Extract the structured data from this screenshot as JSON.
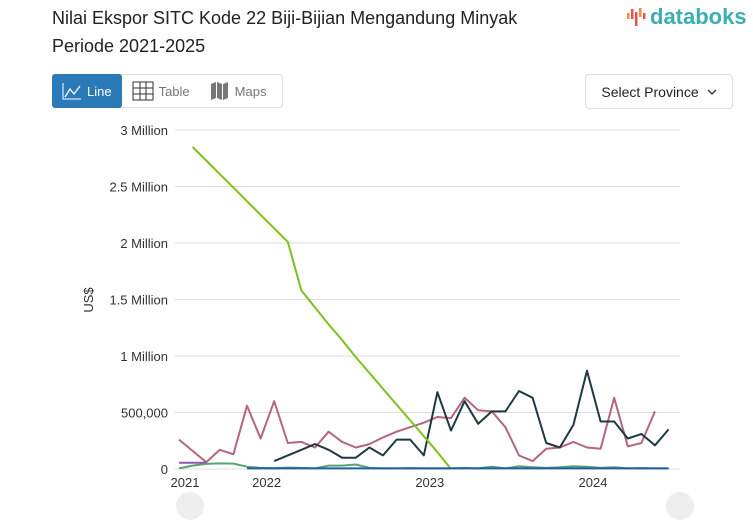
{
  "header": {
    "title_line1": "Nilai Ekspor SITC Kode 22 Biji-Bijian Mengandung Minyak",
    "title_line2": "Periode 2021-2025",
    "logo_text": "databoks"
  },
  "tabs": [
    {
      "label": "Line",
      "icon": "line-chart-icon",
      "active": true
    },
    {
      "label": "Table",
      "icon": "table-icon"
    },
    {
      "label": "Maps",
      "icon": "map-icon"
    }
  ],
  "select": {
    "label": "Select Province",
    "icon": "chevron-down-icon"
  },
  "colors": {
    "accent": "#2a7ab8",
    "logo": "#3aaeb0"
  },
  "chart_data": {
    "type": "line",
    "ylabel": "US$",
    "ylim": [
      0,
      3000000
    ],
    "yticks": [
      {
        "v": 0,
        "label": "0"
      },
      {
        "v": 500000,
        "label": "500,000"
      },
      {
        "v": 1000000,
        "label": "1 Million"
      },
      {
        "v": 1500000,
        "label": "1.5 Million"
      },
      {
        "v": 2000000,
        "label": "2 Million"
      },
      {
        "v": 2500000,
        "label": "2.5 Million"
      },
      {
        "v": 3000000,
        "label": "3 Million"
      }
    ],
    "xticks": [
      {
        "month": "2021-07",
        "label": "2021"
      },
      {
        "month": "2022-01",
        "label": "2022"
      },
      {
        "month": "2023-01",
        "label": "2023"
      },
      {
        "month": "2024-01",
        "label": "2024"
      }
    ],
    "x_start": "2021-07",
    "grid": true,
    "series": [
      {
        "color": "#b5657e",
        "start": "2021-07",
        "values": [
          260000,
          160000,
          60000,
          170000,
          130000,
          560000,
          270000,
          600000,
          230000,
          240000,
          190000,
          330000,
          240000,
          190000,
          220000,
          280000,
          330000,
          370000,
          410000,
          460000,
          450000,
          630000,
          520000,
          510000,
          370000,
          120000,
          70000,
          180000,
          190000,
          240000,
          190000,
          180000,
          630000,
          200000,
          230000,
          510000
        ]
      },
      {
        "color": "#1e3a40",
        "start": "2022-02",
        "values": [
          70000,
          120000,
          170000,
          220000,
          170000,
          100000,
          100000,
          190000,
          120000,
          260000,
          260000,
          120000,
          680000,
          340000,
          600000,
          400000,
          510000,
          510000,
          690000,
          630000,
          230000,
          190000,
          390000,
          870000,
          420000,
          420000,
          270000,
          310000,
          210000,
          350000
        ]
      },
      {
        "color": "#7cc11c",
        "start": "2021-08",
        "values": [
          2850000,
          2730000,
          2610000,
          2490000,
          2370000,
          2250000,
          2130000,
          2010000,
          1580000,
          1430000,
          1280000,
          1140000,
          990000,
          850000,
          710000,
          570000,
          430000,
          290000,
          150000,
          0
        ]
      },
      {
        "color": "#5aa372",
        "start": "2021-07",
        "values": [
          5000,
          30000,
          45000,
          50000,
          48000,
          20000,
          10000,
          8000,
          12000,
          10000,
          5000,
          30000,
          30000,
          40000,
          10000,
          5000,
          5000,
          8000,
          5000,
          5000,
          5000,
          10000,
          5000,
          20000,
          5000,
          25000,
          15000,
          10000,
          15000,
          25000,
          20000,
          10000,
          15000,
          5000,
          8000,
          5000,
          5000
        ]
      },
      {
        "color": "#8e5aa8",
        "start": "2021-07",
        "values": [
          55000,
          55000,
          55000
        ]
      },
      {
        "color": "#1f5fa8",
        "start": "2021-12",
        "values": [
          5000,
          5000,
          5000,
          5000,
          5000,
          5000,
          5000,
          5000,
          5000,
          5000,
          5000,
          5000,
          5000,
          5000,
          5000,
          5000,
          5000,
          5000,
          5000,
          5000,
          5000,
          5000,
          5000,
          5000,
          5000,
          5000,
          5000,
          5000,
          5000,
          5000,
          5000,
          5000
        ]
      }
    ]
  }
}
